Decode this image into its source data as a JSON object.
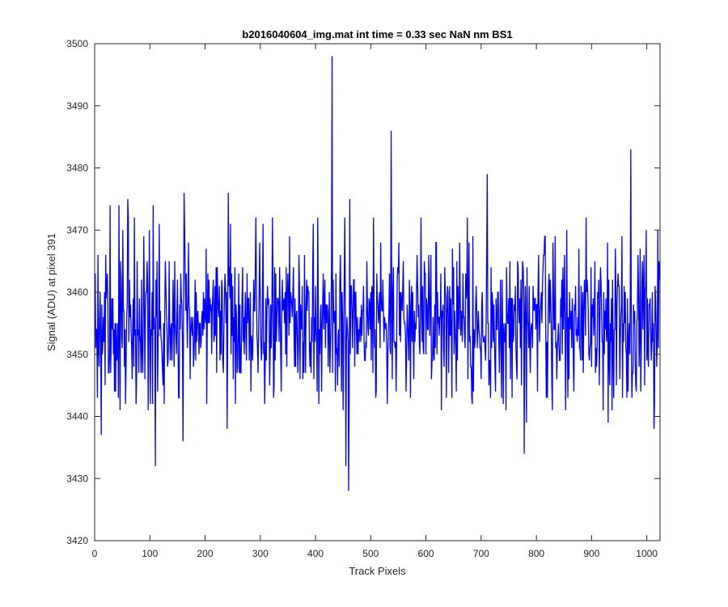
{
  "chart_data": {
    "type": "line",
    "title": "b2016040604_img.mat int time = 0.33 sec  NaN nm BS1",
    "xlabel": "Track Pixels",
    "ylabel": "Signal (ADU) at pixel 391",
    "xlim": [
      0,
      1024
    ],
    "ylim": [
      3420,
      3500
    ],
    "xticks": [
      0,
      100,
      200,
      300,
      400,
      500,
      600,
      700,
      800,
      900,
      1000
    ],
    "yticks": [
      3420,
      3430,
      3440,
      3450,
      3460,
      3470,
      3480,
      3490,
      3500
    ],
    "grid": false,
    "box": true,
    "series": [
      {
        "color": "#0000ff",
        "x_start": 1,
        "x_step": 1,
        "baseline": 3455,
        "noise_amplitude": 8,
        "highlights": [
          {
            "x": 12,
            "y": 3437
          },
          {
            "x": 28,
            "y": 3474
          },
          {
            "x": 44,
            "y": 3474
          },
          {
            "x": 60,
            "y": 3475
          },
          {
            "x": 106,
            "y": 3474
          },
          {
            "x": 110,
            "y": 3432
          },
          {
            "x": 160,
            "y": 3436
          },
          {
            "x": 162,
            "y": 3476
          },
          {
            "x": 240,
            "y": 3438
          },
          {
            "x": 242,
            "y": 3476
          },
          {
            "x": 430,
            "y": 3498
          },
          {
            "x": 440,
            "y": 3445
          },
          {
            "x": 455,
            "y": 3432
          },
          {
            "x": 460,
            "y": 3428
          },
          {
            "x": 462,
            "y": 3475
          },
          {
            "x": 537,
            "y": 3486
          },
          {
            "x": 711,
            "y": 3479
          },
          {
            "x": 778,
            "y": 3434
          },
          {
            "x": 782,
            "y": 3439
          },
          {
            "x": 930,
            "y": 3439
          },
          {
            "x": 971,
            "y": 3483
          },
          {
            "x": 1013,
            "y": 3438
          },
          {
            "x": 1020,
            "y": 3470
          }
        ]
      }
    ]
  }
}
